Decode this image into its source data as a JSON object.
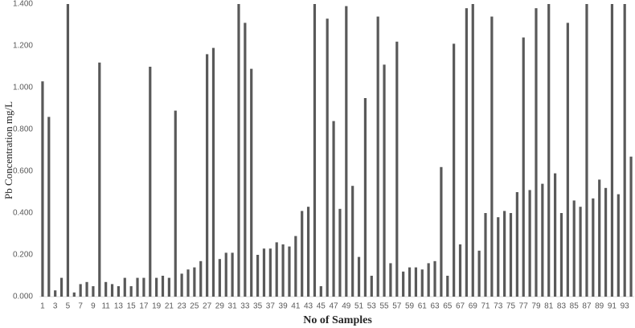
{
  "chart_data": {
    "type": "bar",
    "x_label": "No of Samples",
    "y_label": "Pb Concentration mg/L",
    "categories": [
      1,
      null,
      3,
      null,
      5,
      null,
      7,
      null,
      9,
      null,
      11,
      null,
      13,
      null,
      15,
      null,
      17,
      null,
      19,
      null,
      21,
      null,
      23,
      null,
      25,
      null,
      27,
      null,
      29,
      null,
      31,
      null,
      33,
      null,
      35,
      null,
      37,
      null,
      39,
      null,
      41,
      null,
      43,
      null,
      45,
      null,
      47,
      null,
      49,
      null,
      51,
      null,
      53,
      null,
      55,
      null,
      57,
      null,
      59,
      null,
      61,
      null,
      63,
      null,
      65,
      null,
      67,
      null,
      69,
      null,
      71,
      null,
      73,
      null,
      75,
      null,
      77,
      null,
      79,
      null,
      81,
      null,
      83,
      null,
      85,
      null,
      87,
      null,
      89,
      null,
      91,
      null,
      93,
      null
    ],
    "values": [
      1.03,
      0.86,
      0.03,
      0.09,
      1.4,
      0.02,
      0.06,
      0.07,
      0.05,
      1.12,
      0.07,
      0.06,
      0.05,
      0.09,
      0.05,
      0.09,
      0.09,
      1.1,
      0.09,
      0.1,
      0.09,
      0.89,
      0.11,
      0.13,
      0.14,
      0.17,
      1.16,
      1.19,
      0.18,
      0.21,
      0.21,
      1.4,
      1.31,
      1.09,
      0.2,
      0.23,
      0.23,
      0.26,
      0.25,
      0.24,
      0.29,
      0.41,
      0.43,
      1.4,
      0.05,
      1.33,
      0.84,
      0.42,
      1.39,
      0.53,
      0.19,
      0.95,
      0.1,
      1.34,
      1.11,
      0.16,
      1.22,
      0.12,
      0.14,
      0.14,
      0.13,
      0.16,
      0.17,
      0.62,
      0.1,
      1.21,
      0.25,
      1.38,
      1.4,
      0.22,
      0.4,
      1.34,
      0.38,
      0.41,
      0.4,
      0.5,
      1.24,
      0.51,
      1.38,
      0.54,
      1.4,
      0.59,
      0.4,
      1.31,
      0.46,
      0.43,
      1.4,
      0.47,
      0.56,
      0.52,
      1.4,
      0.49,
      1.4,
      0.67
    ],
    "color": "#595959",
    "ylim": [
      0,
      1.4
    ],
    "yticks": [
      {
        "value": 0,
        "label": "0.000"
      },
      {
        "value": 0.2,
        "label": "0.200"
      },
      {
        "value": 0.4,
        "label": "0.400"
      },
      {
        "value": 0.6,
        "label": "0.600"
      },
      {
        "value": 0.8,
        "label": "0.800"
      },
      {
        "value": 1.0,
        "label": "1.000"
      },
      {
        "value": 1.2,
        "label": "1.200"
      },
      {
        "value": 1.4,
        "label": "1.400"
      }
    ]
  }
}
